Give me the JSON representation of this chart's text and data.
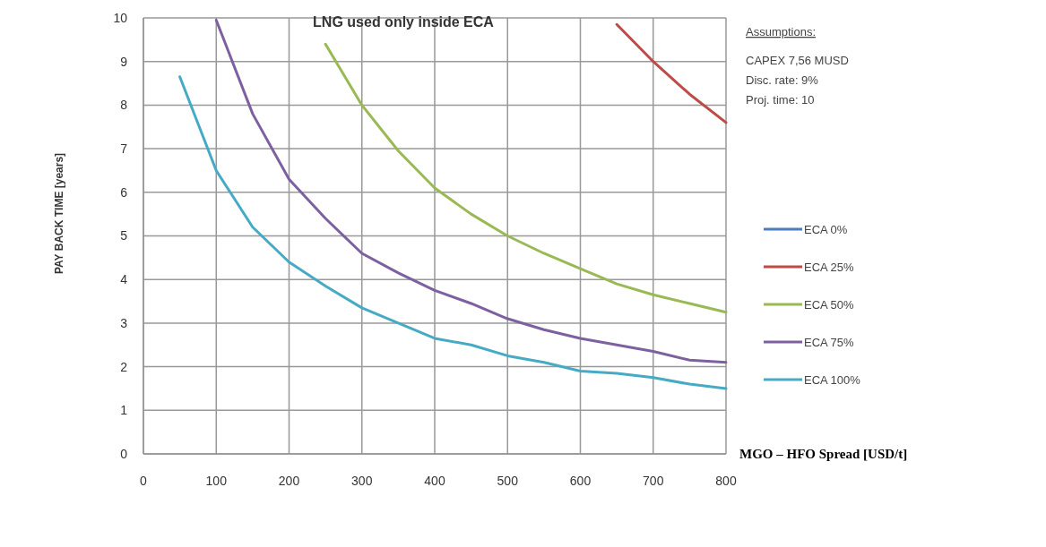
{
  "chart_data": {
    "type": "line",
    "title": "LNG used only inside ECA",
    "xlabel": "MGO – HFO Spread [USD/t]",
    "ylabel": "PAY BACK TIME [years]",
    "annotations": [
      "Assumptions:",
      "CAPEX 7,56 MUSD",
      "Disc. rate: 9%",
      "Proj. time: 10"
    ],
    "xlim": [
      0,
      800
    ],
    "xticks": [
      0,
      100,
      200,
      300,
      400,
      500,
      600,
      700,
      800
    ],
    "ylim": [
      0,
      10
    ],
    "yticks": [
      0,
      1,
      2,
      3,
      4,
      5,
      6,
      7,
      8,
      9,
      10
    ],
    "grid": true,
    "legend": "right",
    "marker": "none",
    "series": [
      {
        "name": "ECA 0%",
        "color": "#4a7ebb"
      },
      {
        "name": "ECA 25%",
        "color": "#be4b48",
        "x": [
          650,
          700,
          750,
          800
        ],
        "values": [
          9.85,
          9.0,
          8.25,
          7.6
        ]
      },
      {
        "name": "ECA 50%",
        "color": "#98b954",
        "x": [
          250,
          300,
          350,
          400,
          450,
          500,
          550,
          600,
          650,
          700,
          750,
          800
        ],
        "values": [
          9.4,
          8.0,
          6.95,
          6.1,
          5.5,
          5.0,
          4.6,
          4.25,
          3.9,
          3.65,
          3.45,
          3.25
        ]
      },
      {
        "name": "ECA 75%",
        "color": "#7d60a0",
        "x": [
          100,
          150,
          200,
          250,
          300,
          350,
          400,
          450,
          500,
          550,
          600,
          650,
          700,
          750,
          800
        ],
        "values": [
          9.95,
          7.8,
          6.3,
          5.4,
          4.6,
          4.15,
          3.75,
          3.45,
          3.1,
          2.85,
          2.65,
          2.5,
          2.35,
          2.15,
          2.1
        ]
      },
      {
        "name": "ECA 100%",
        "color": "#46aac5",
        "x": [
          50,
          100,
          150,
          200,
          250,
          300,
          350,
          400,
          450,
          500,
          550,
          600,
          650,
          700,
          750,
          800
        ],
        "values": [
          8.65,
          6.5,
          5.2,
          4.4,
          3.85,
          3.35,
          3.0,
          2.65,
          2.5,
          2.25,
          2.1,
          1.9,
          1.85,
          1.75,
          1.6,
          1.5
        ]
      }
    ]
  }
}
